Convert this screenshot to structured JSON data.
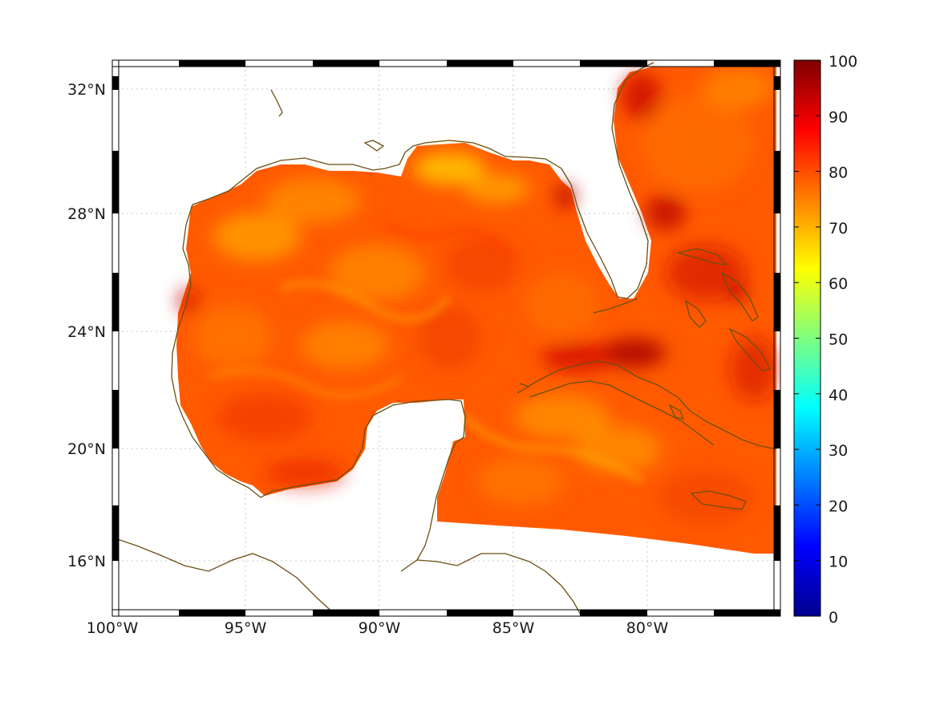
{
  "map": {
    "lon_range": [
      -100,
      -75
    ],
    "lat_range": [
      14.25,
      33
    ],
    "lon_ticks": [
      {
        "value": -100,
        "label": "100°W"
      },
      {
        "value": -95,
        "label": "95°W"
      },
      {
        "value": -90,
        "label": "90°W"
      },
      {
        "value": -85,
        "label": "85°W"
      },
      {
        "value": -80,
        "label": "80°W"
      }
    ],
    "lat_ticks": [
      {
        "value": 32,
        "label": "32°N"
      },
      {
        "value": 28,
        "label": "28°N"
      },
      {
        "value": 24,
        "label": "24°N"
      },
      {
        "value": 20,
        "label": "20°N"
      },
      {
        "value": 16,
        "label": "16°N"
      }
    ],
    "grid": true,
    "coastline_color": "#6b4f12",
    "land_color": "#ffffff"
  },
  "colorbar": {
    "min": 0,
    "max": 100,
    "colormap": "jet",
    "ticks": [
      {
        "value": 100,
        "label": "100"
      },
      {
        "value": 90,
        "label": "90"
      },
      {
        "value": 80,
        "label": "80"
      },
      {
        "value": 70,
        "label": "70"
      },
      {
        "value": 60,
        "label": "60"
      },
      {
        "value": 50,
        "label": "50"
      },
      {
        "value": 40,
        "label": "40"
      },
      {
        "value": 30,
        "label": "30"
      },
      {
        "value": 20,
        "label": "20"
      },
      {
        "value": 10,
        "label": "10"
      },
      {
        "value": 0,
        "label": "0"
      }
    ]
  },
  "field": {
    "typical_range": [
      70,
      95
    ],
    "dominant_level": 80
  }
}
